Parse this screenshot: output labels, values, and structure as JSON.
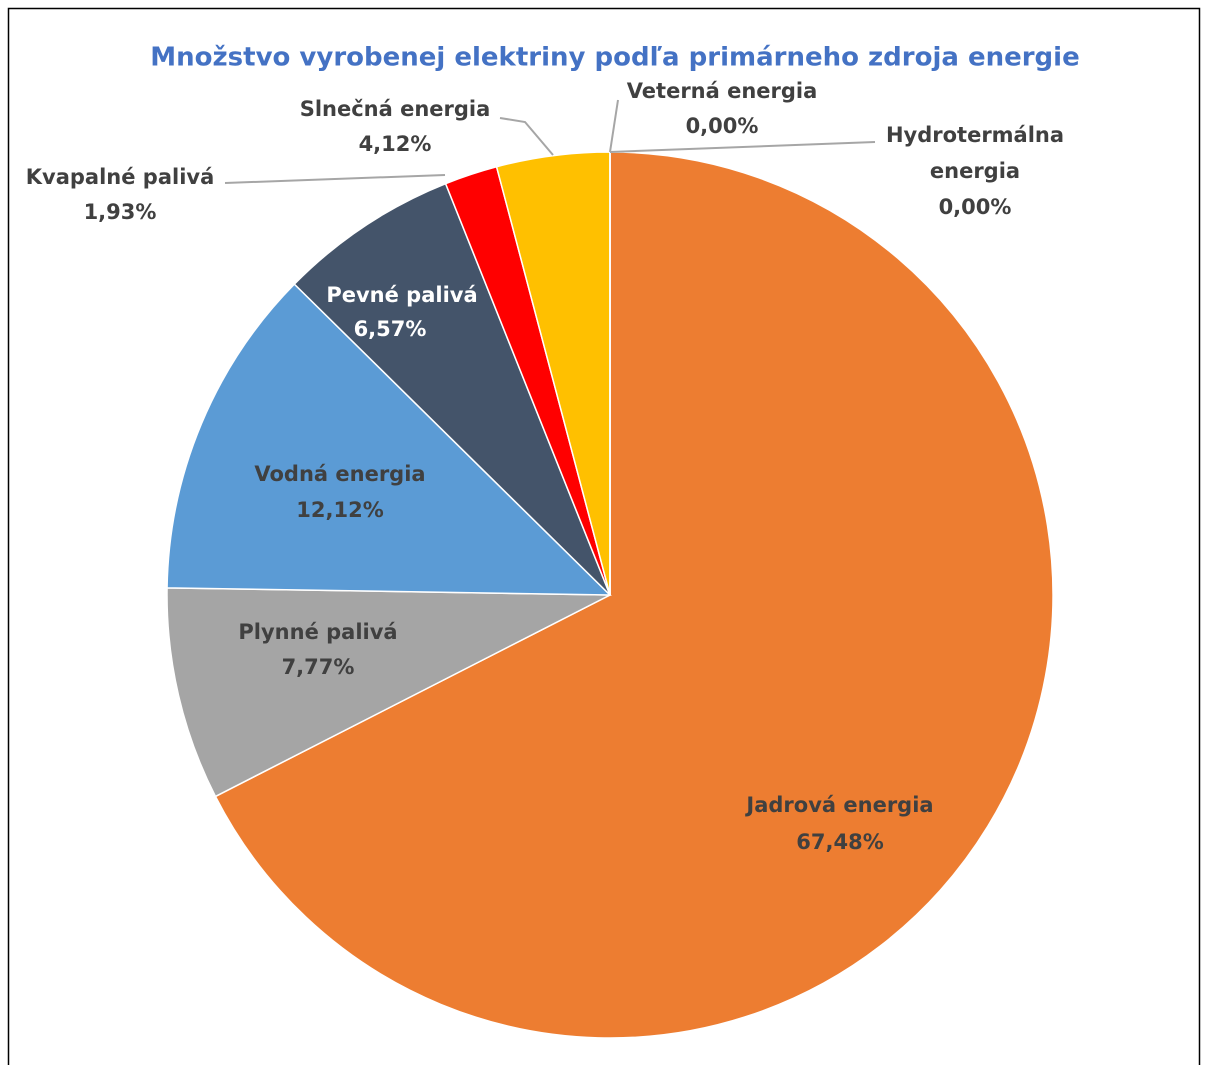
{
  "chart_data": {
    "type": "pie",
    "title": "Množstvo vyrobenej elektriny podľa primárneho zdroja energie",
    "categories": [
      "Jadrová energia",
      "Plynné palivá",
      "Vodná energia",
      "Pevné palivá",
      "Kvapalné palivá",
      "Slnečná energia",
      "Veterná energia",
      "Hydrotermálna energia"
    ],
    "values": [
      67.48,
      7.77,
      12.12,
      6.57,
      1.93,
      4.12,
      0.0,
      0.0
    ],
    "value_labels": [
      "67,48%",
      "7,77%",
      "12,12%",
      "6,57%",
      "1,93%",
      "4,12%",
      "0,00%",
      "0,00%"
    ],
    "colors": [
      "#ed7d31",
      "#a5a5a5",
      "#5b9bd5",
      "#44546a",
      "#ff0000",
      "#ffc000",
      "#4472c4",
      "#70ad47"
    ]
  }
}
